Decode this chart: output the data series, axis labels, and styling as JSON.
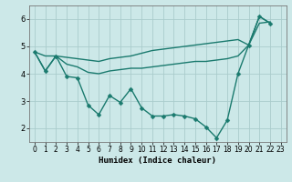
{
  "title": "",
  "xlabel": "Humidex (Indice chaleur)",
  "ylabel": "",
  "bg_color": "#cce8e8",
  "grid_color": "#aacccc",
  "line_color": "#1a7a6e",
  "ylim": [
    1.5,
    6.5
  ],
  "xlim": [
    -0.5,
    23.5
  ],
  "yticks": [
    2,
    3,
    4,
    5,
    6
  ],
  "xticks": [
    0,
    1,
    2,
    3,
    4,
    5,
    6,
    7,
    8,
    9,
    10,
    11,
    12,
    13,
    14,
    15,
    16,
    17,
    18,
    19,
    20,
    21,
    22,
    23
  ],
  "line1_y": [
    4.8,
    4.1,
    4.65,
    3.9,
    3.85,
    2.85,
    2.5,
    3.2,
    2.95,
    3.45,
    2.75,
    2.45,
    2.45,
    2.5,
    2.45,
    2.35,
    2.05,
    1.65,
    2.3,
    4.0,
    5.05,
    6.1,
    5.85,
    null
  ],
  "line2_y": [
    4.8,
    4.1,
    4.65,
    4.35,
    4.25,
    4.05,
    4.0,
    4.1,
    4.15,
    4.2,
    4.2,
    4.25,
    4.3,
    4.35,
    4.4,
    4.45,
    4.45,
    4.5,
    4.55,
    4.65,
    5.05,
    5.85,
    5.9,
    null
  ],
  "line3_y": [
    4.8,
    4.65,
    4.65,
    4.6,
    4.55,
    4.5,
    4.45,
    4.55,
    4.6,
    4.65,
    4.75,
    4.85,
    4.9,
    4.95,
    5.0,
    5.05,
    5.1,
    5.15,
    5.2,
    5.25,
    5.05,
    6.1,
    5.85,
    null
  ],
  "marker": "D",
  "markersize": 2.5,
  "linewidth": 1.0,
  "tick_fontsize": 5.5,
  "xlabel_fontsize": 6.5
}
